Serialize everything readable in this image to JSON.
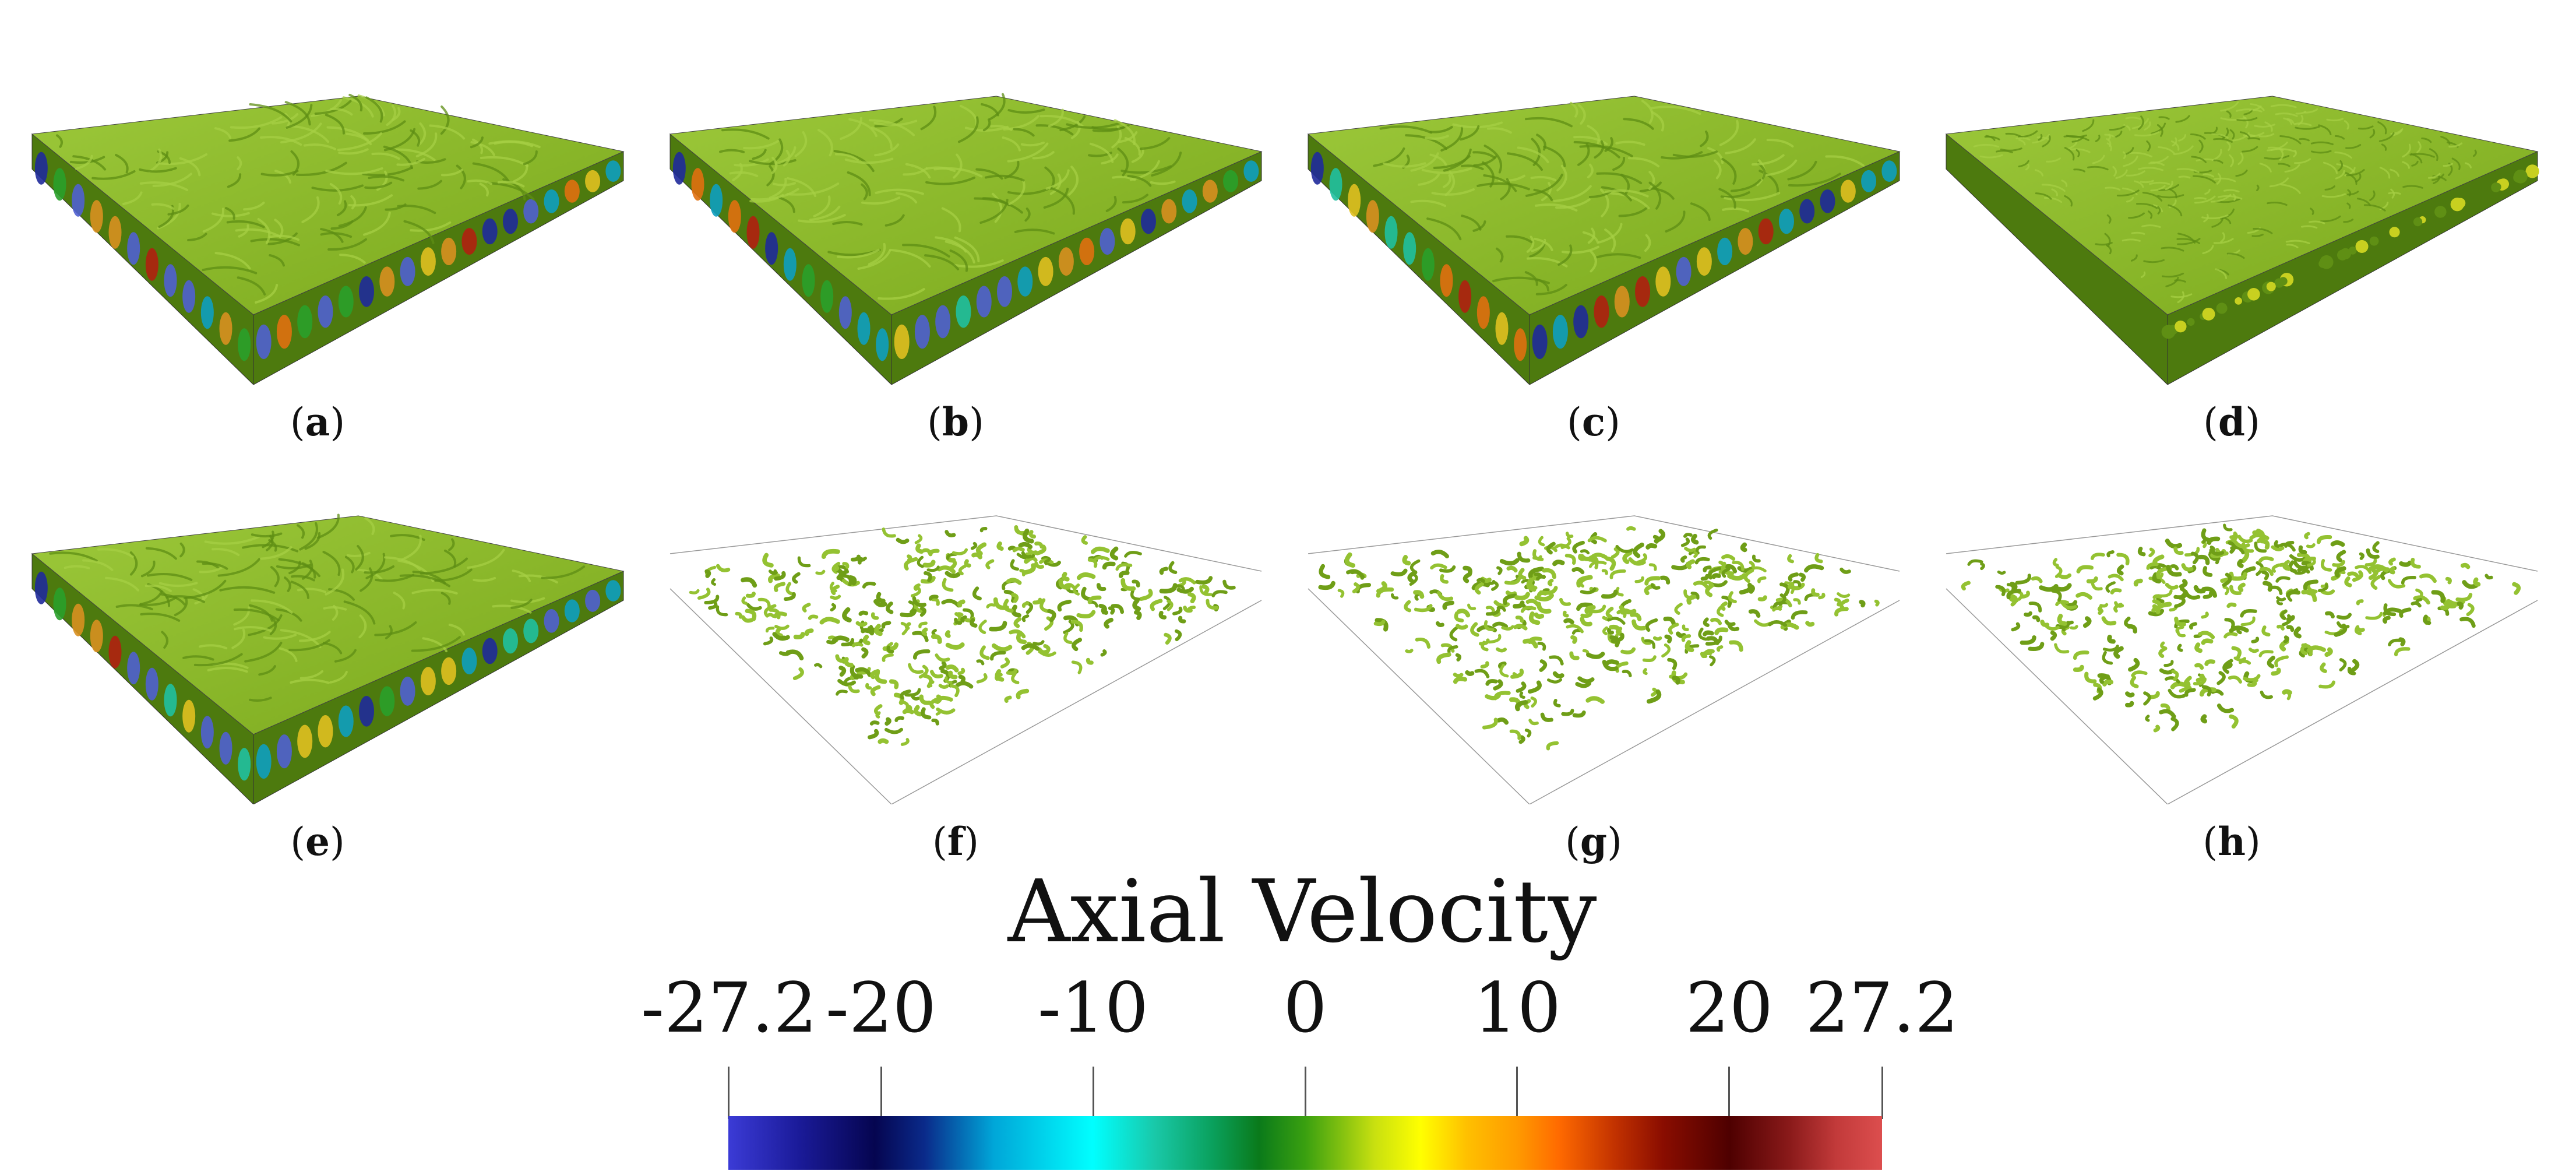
{
  "figure": {
    "panels": [
      {
        "label": "a",
        "style": "vortex-slab"
      },
      {
        "label": "b",
        "style": "vortex-slab"
      },
      {
        "label": "c",
        "style": "vortex-slab"
      },
      {
        "label": "d",
        "style": "turbulent-slab"
      },
      {
        "label": "e",
        "style": "vortex-slab"
      },
      {
        "label": "f",
        "style": "sparse-structures"
      },
      {
        "label": "g",
        "style": "sparse-structures"
      },
      {
        "label": "h",
        "style": "sparse-structures"
      }
    ],
    "caption_open": "(",
    "caption_close": ")"
  },
  "colorbar": {
    "title": "Axial Velocity",
    "min": -27.2,
    "max": 27.2,
    "ticks": [
      {
        "value": -27.2,
        "label": "-27.2"
      },
      {
        "value": -20,
        "label": "-20"
      },
      {
        "value": -10,
        "label": "-10"
      },
      {
        "value": 0,
        "label": "0"
      },
      {
        "value": 10,
        "label": "10"
      },
      {
        "value": 20,
        "label": "20"
      },
      {
        "value": 27.2,
        "label": "27.2"
      }
    ]
  },
  "colors": {
    "surface_green": "#7aa81c",
    "surface_dark": "#4d7a0e",
    "surface_light": "#9cc83a"
  }
}
